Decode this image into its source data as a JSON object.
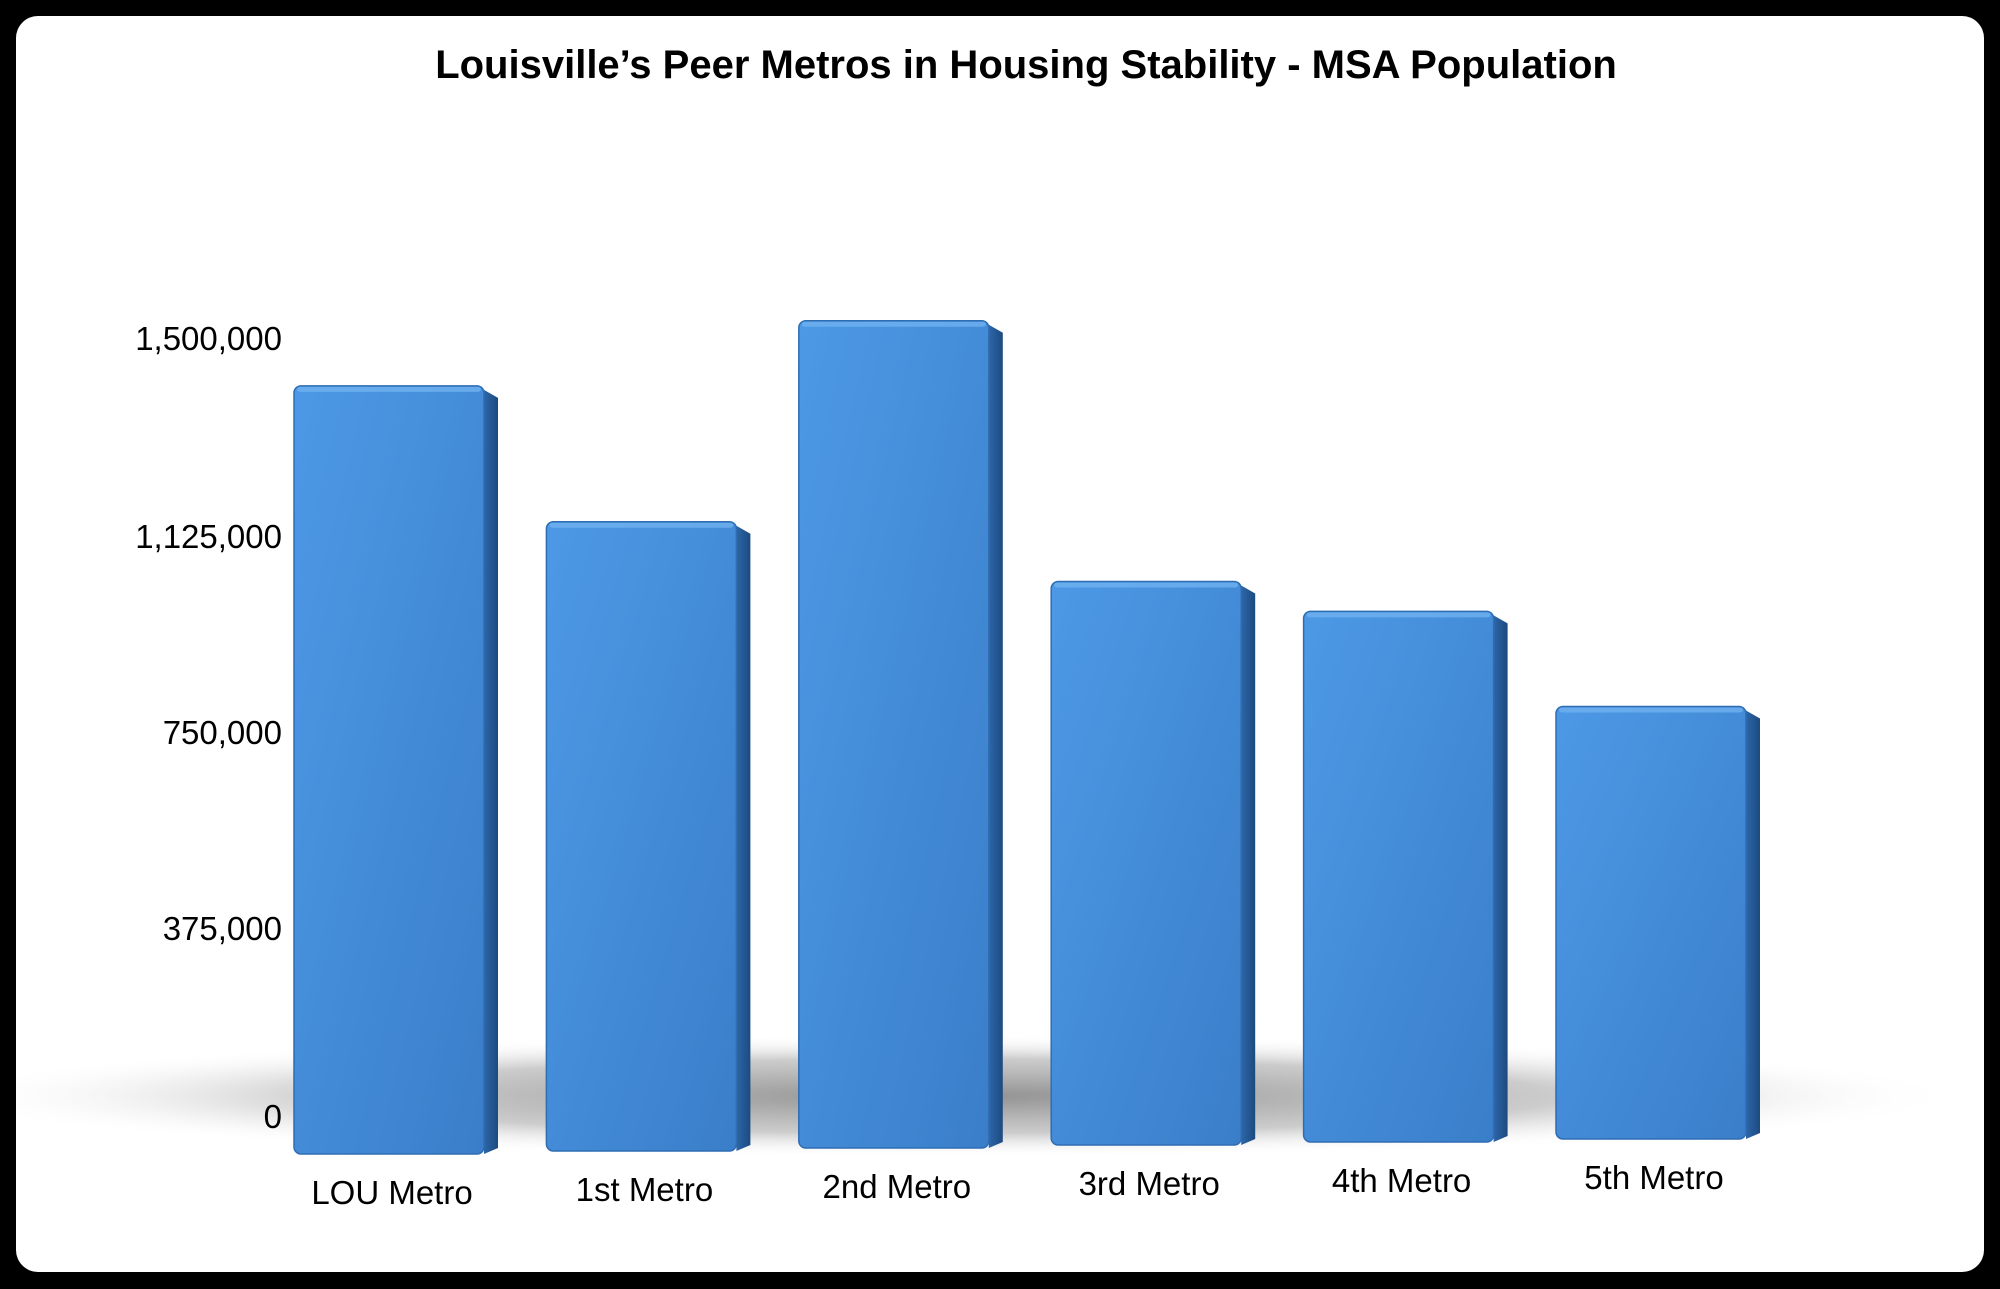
{
  "chart_data": {
    "type": "bar",
    "title": "Louisville’s Peer Metros in Housing Stability - MSA Population",
    "xlabel": "",
    "ylabel": "",
    "categories": [
      "LOU Metro",
      "1st Metro",
      "2nd Metro",
      "3rd Metro",
      "4th Metro",
      "5th Metro"
    ],
    "values": [
      1410000,
      1160000,
      1530000,
      1050000,
      995000,
      820000
    ],
    "ylim": [
      0,
      1500000
    ],
    "yticks": [
      0,
      375000,
      750000,
      1125000,
      1500000
    ],
    "ytick_labels": [
      "0",
      "375,000",
      "750,000",
      "1,125,000",
      "1,500,000"
    ],
    "grid": false,
    "legend": "none",
    "bar_color": "#4a90dc"
  }
}
